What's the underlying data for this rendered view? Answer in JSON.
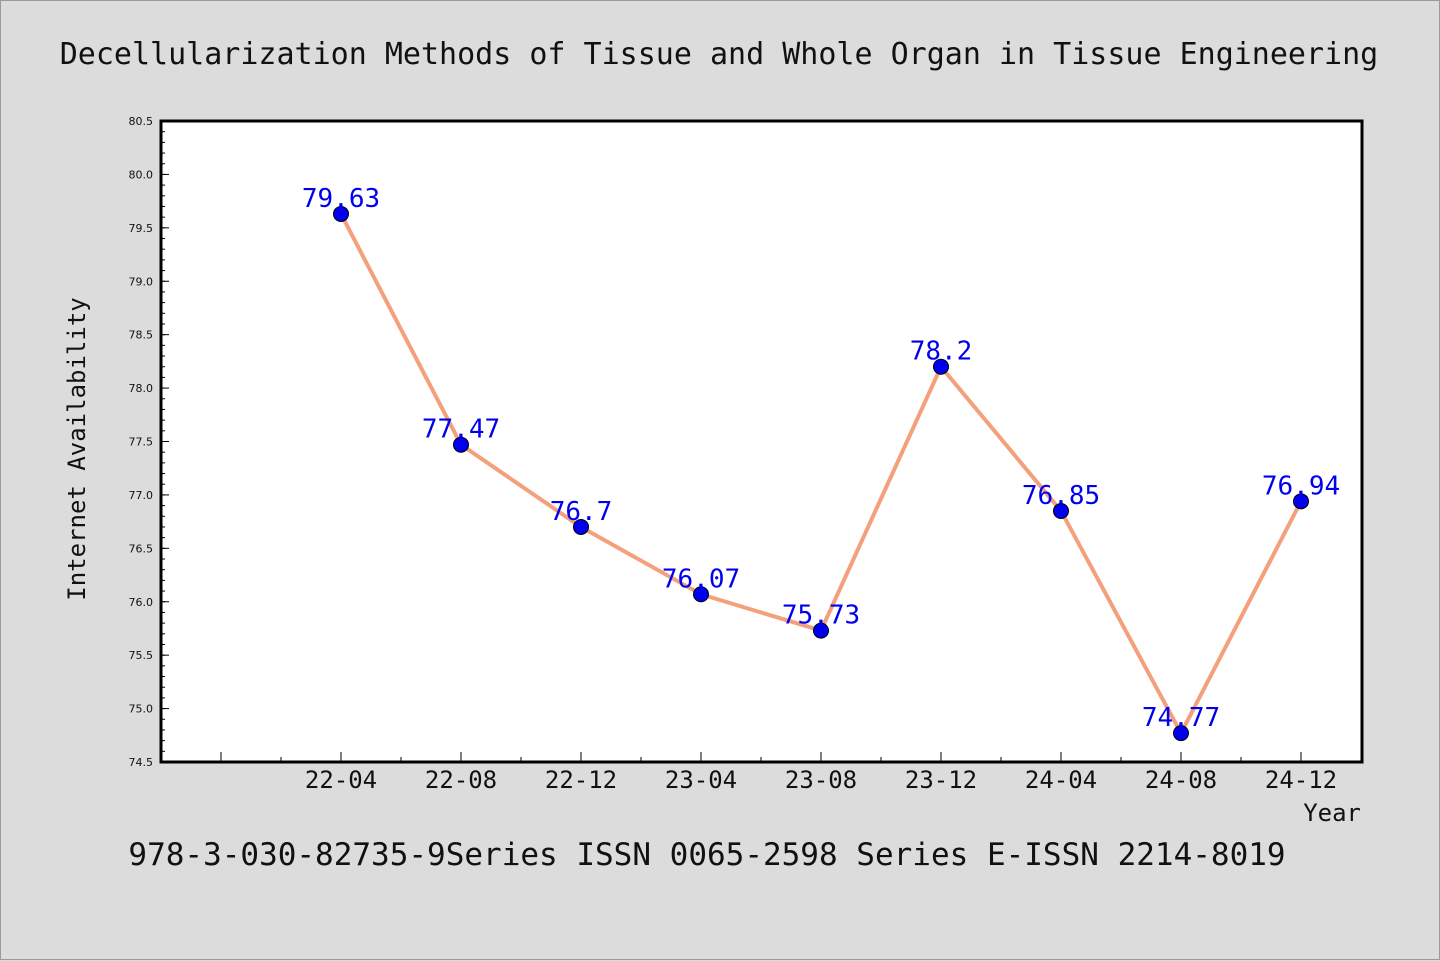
{
  "chart_data": {
    "type": "line",
    "title": "Decellularization Methods of Tissue and Whole Organ in Tissue Engineering",
    "footer": "978-3-030-82735-9Series ISSN 0065-2598 Series E-ISSN 2214-8019",
    "xlabel": "Year",
    "ylabel": "Internet Availability",
    "categories": [
      "22-04",
      "22-08",
      "22-12",
      "23-04",
      "23-08",
      "23-12",
      "24-04",
      "24-08",
      "24-12"
    ],
    "values": [
      79.63,
      77.47,
      76.7,
      76.07,
      75.73,
      78.2,
      76.85,
      74.77,
      76.94
    ],
    "data_labels": [
      "79.63",
      "77.47",
      "76.7",
      "76.07",
      "75.73",
      "78.2",
      "76.85",
      "74.77",
      "76.94"
    ],
    "ylim": [
      74.5,
      80.5
    ],
    "yticks": [
      "74.5",
      "75.0",
      "75.5",
      "76.0",
      "76.5",
      "77.0",
      "77.5",
      "78.0",
      "78.5",
      "79.0",
      "79.5",
      "80.0",
      "80.5"
    ],
    "grid": false,
    "legend": "none",
    "colors": {
      "line": "#f4a07c",
      "marker": "#0000ee",
      "data_label": "#0000ee",
      "plot_bg": "#ffffff",
      "page_bg": "#dcdcdc"
    }
  }
}
